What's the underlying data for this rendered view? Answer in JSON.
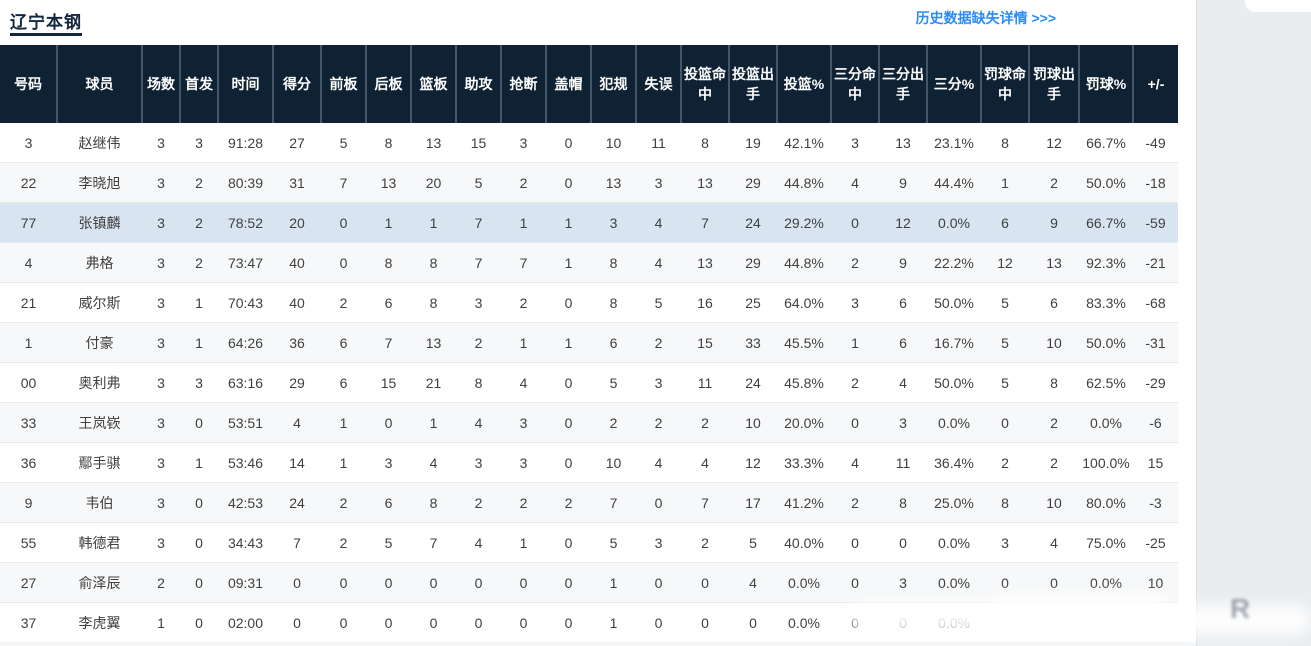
{
  "page": {
    "title": "辽宁本钢",
    "history_link": "历史数据缺失详情 >>>"
  },
  "colors": {
    "header_bg": "#0e2234",
    "title_accent": "#15273f",
    "link_blue": "#2d8cf0",
    "highlight_row": "#d8e4f0",
    "alt_row": "#f7f8f9",
    "page_side_bg": "#eaedf0"
  },
  "watermark": {
    "glyph": "R"
  },
  "table": {
    "columns": [
      "号码",
      "球员",
      "场数",
      "首发",
      "时间",
      "得分",
      "前板",
      "后板",
      "篮板",
      "助攻",
      "抢断",
      "盖帽",
      "犯规",
      "失误",
      "投篮命中",
      "投篮出手",
      "投篮%",
      "三分命中",
      "三分出手",
      "三分%",
      "罚球命中",
      "罚球出手",
      "罚球%",
      "+/-"
    ],
    "rows": [
      {
        "highlight": false,
        "cells": [
          "3",
          "赵继伟",
          "3",
          "3",
          "91:28",
          "27",
          "5",
          "8",
          "13",
          "15",
          "3",
          "0",
          "10",
          "11",
          "8",
          "19",
          "42.1%",
          "3",
          "13",
          "23.1%",
          "8",
          "12",
          "66.7%",
          "-49"
        ]
      },
      {
        "highlight": false,
        "cells": [
          "22",
          "李晓旭",
          "3",
          "2",
          "80:39",
          "31",
          "7",
          "13",
          "20",
          "5",
          "2",
          "0",
          "13",
          "3",
          "13",
          "29",
          "44.8%",
          "4",
          "9",
          "44.4%",
          "1",
          "2",
          "50.0%",
          "-18"
        ]
      },
      {
        "highlight": true,
        "cells": [
          "77",
          "张镇麟",
          "3",
          "2",
          "78:52",
          "20",
          "0",
          "1",
          "1",
          "7",
          "1",
          "1",
          "3",
          "4",
          "7",
          "24",
          "29.2%",
          "0",
          "12",
          "0.0%",
          "6",
          "9",
          "66.7%",
          "-59"
        ]
      },
      {
        "highlight": false,
        "cells": [
          "4",
          "弗格",
          "3",
          "2",
          "73:47",
          "40",
          "0",
          "8",
          "8",
          "7",
          "7",
          "1",
          "8",
          "4",
          "13",
          "29",
          "44.8%",
          "2",
          "9",
          "22.2%",
          "12",
          "13",
          "92.3%",
          "-21"
        ]
      },
      {
        "highlight": false,
        "cells": [
          "21",
          "威尔斯",
          "3",
          "1",
          "70:43",
          "40",
          "2",
          "6",
          "8",
          "3",
          "2",
          "0",
          "8",
          "5",
          "16",
          "25",
          "64.0%",
          "3",
          "6",
          "50.0%",
          "5",
          "6",
          "83.3%",
          "-68"
        ]
      },
      {
        "highlight": false,
        "cells": [
          "1",
          "付豪",
          "3",
          "1",
          "64:26",
          "36",
          "6",
          "7",
          "13",
          "2",
          "1",
          "1",
          "6",
          "2",
          "15",
          "33",
          "45.5%",
          "1",
          "6",
          "16.7%",
          "5",
          "10",
          "50.0%",
          "-31"
        ]
      },
      {
        "highlight": false,
        "cells": [
          "00",
          "奥利弗",
          "3",
          "3",
          "63:16",
          "29",
          "6",
          "15",
          "21",
          "8",
          "4",
          "0",
          "5",
          "3",
          "11",
          "24",
          "45.8%",
          "2",
          "4",
          "50.0%",
          "5",
          "8",
          "62.5%",
          "-29"
        ]
      },
      {
        "highlight": false,
        "cells": [
          "33",
          "王岚嵚",
          "3",
          "0",
          "53:51",
          "4",
          "1",
          "0",
          "1",
          "4",
          "3",
          "0",
          "2",
          "2",
          "2",
          "10",
          "20.0%",
          "0",
          "3",
          "0.0%",
          "0",
          "2",
          "0.0%",
          "-6"
        ]
      },
      {
        "highlight": false,
        "cells": [
          "36",
          "鄢手骐",
          "3",
          "1",
          "53:46",
          "14",
          "1",
          "3",
          "4",
          "3",
          "3",
          "0",
          "10",
          "4",
          "4",
          "12",
          "33.3%",
          "4",
          "11",
          "36.4%",
          "2",
          "2",
          "100.0%",
          "15"
        ]
      },
      {
        "highlight": false,
        "cells": [
          "9",
          "韦伯",
          "3",
          "0",
          "42:53",
          "24",
          "2",
          "6",
          "8",
          "2",
          "2",
          "2",
          "7",
          "0",
          "7",
          "17",
          "41.2%",
          "2",
          "8",
          "25.0%",
          "8",
          "10",
          "80.0%",
          "-3"
        ]
      },
      {
        "highlight": false,
        "cells": [
          "55",
          "韩德君",
          "3",
          "0",
          "34:43",
          "7",
          "2",
          "5",
          "7",
          "4",
          "1",
          "0",
          "5",
          "3",
          "2",
          "5",
          "40.0%",
          "0",
          "0",
          "0.0%",
          "3",
          "4",
          "75.0%",
          "-25"
        ]
      },
      {
        "highlight": false,
        "cells": [
          "27",
          "俞泽辰",
          "2",
          "0",
          "09:31",
          "0",
          "0",
          "0",
          "0",
          "0",
          "0",
          "0",
          "1",
          "0",
          "0",
          "4",
          "0.0%",
          "0",
          "3",
          "0.0%",
          "0",
          "0",
          "0.0%",
          "10"
        ]
      },
      {
        "highlight": false,
        "cells": [
          "37",
          "李虎翼",
          "1",
          "0",
          "02:00",
          "0",
          "0",
          "0",
          "0",
          "0",
          "0",
          "0",
          "1",
          "0",
          "0",
          "0",
          "0.0%",
          "0",
          "0",
          "0.0%",
          "",
          "",
          "",
          ""
        ]
      }
    ]
  }
}
